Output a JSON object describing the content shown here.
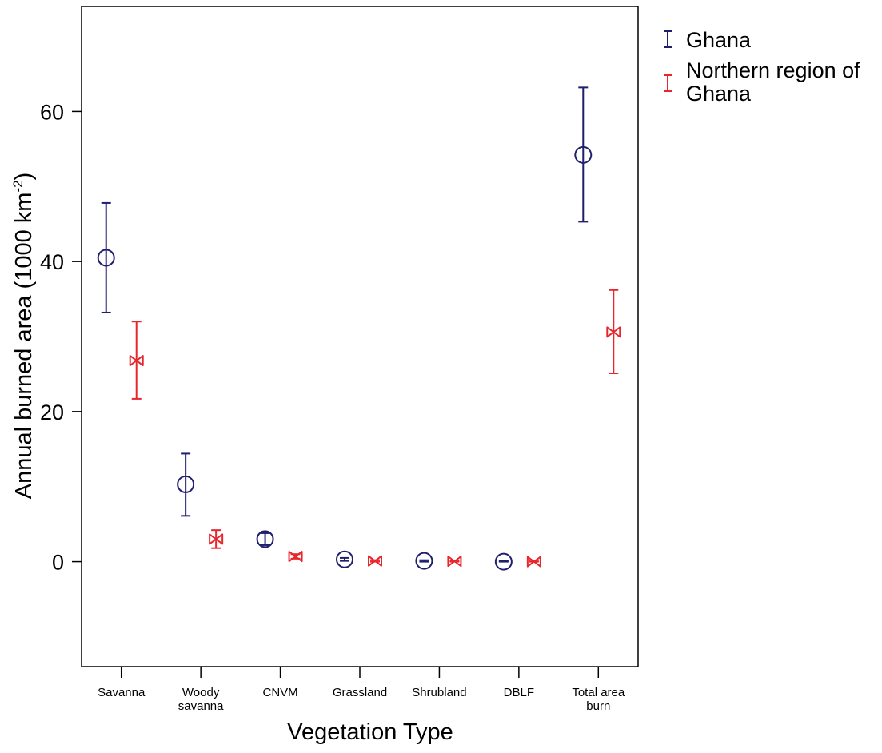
{
  "chart_data": {
    "type": "errorbar",
    "xlabel": "Vegetation Type",
    "ylabel": "Annual burned area  (1000 km",
    "ylabel_sup": "-2",
    "ylabel_close": ")",
    "ylim": [
      -14,
      74
    ],
    "yticks": [
      0,
      20,
      40,
      60
    ],
    "categories": [
      [
        "Savanna"
      ],
      [
        "Woody",
        "savanna"
      ],
      [
        "CNVM"
      ],
      [
        "Grassland"
      ],
      [
        "Shrubland"
      ],
      [
        "DBLF"
      ],
      [
        "Total area",
        "burn"
      ]
    ],
    "series": [
      {
        "name": "Ghana",
        "color": "#1f1f6e",
        "marker": "circle",
        "values": [
          40.5,
          10.3,
          3.0,
          0.3,
          0.1,
          0.0,
          54.2
        ],
        "lower": [
          33.2,
          6.1,
          2.2,
          0.1,
          0.0,
          0.0,
          45.3
        ],
        "upper": [
          47.8,
          14.4,
          3.8,
          0.5,
          0.2,
          0.1,
          63.2
        ]
      },
      {
        "name": "Northern region of Ghana",
        "name_lines": [
          "Northern region of",
          "Ghana"
        ],
        "color": "#e8262e",
        "marker": "bowtie",
        "values": [
          26.8,
          3.0,
          0.7,
          0.1,
          0.05,
          0.0,
          30.6
        ],
        "lower": [
          21.7,
          1.8,
          0.4,
          0.0,
          0.0,
          0.0,
          25.1
        ],
        "upper": [
          32.0,
          4.2,
          1.0,
          0.2,
          0.1,
          0.05,
          36.2
        ]
      }
    ],
    "grid": false,
    "legend_position": "top-right outside"
  }
}
